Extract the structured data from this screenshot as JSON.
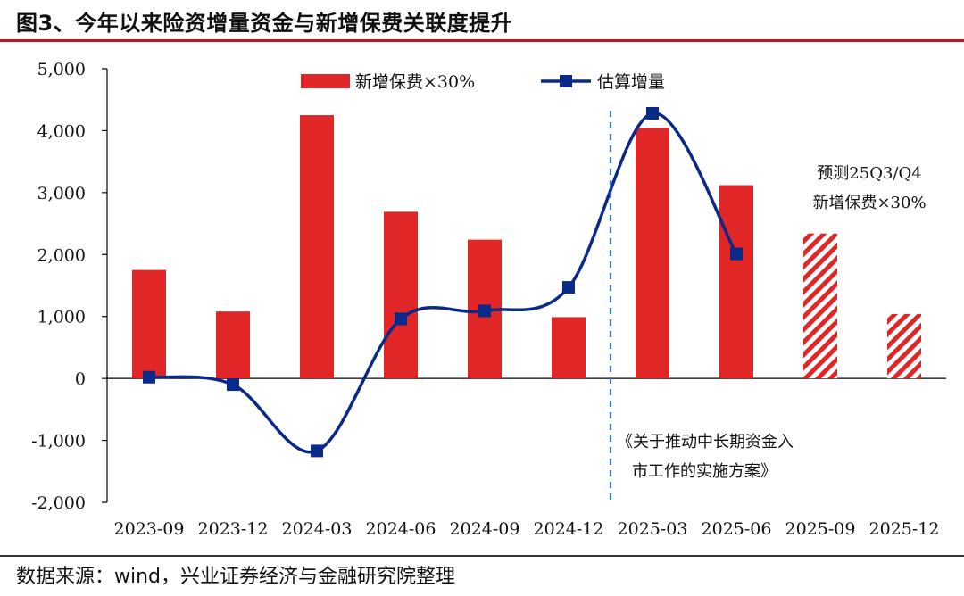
{
  "header": {
    "title": "图3、今年以来险资增量资金与新增保费关联度提升"
  },
  "footer": {
    "source": "数据来源：wind，兴业证券经济与金融研究院整理"
  },
  "colors": {
    "bar": "#e02626",
    "line": "#0a2a8a",
    "title_rule": "#b31b20",
    "divider": "#3a78c9"
  },
  "chart_data": {
    "type": "bar",
    "categories": [
      "2023-09",
      "2023-12",
      "2024-03",
      "2024-06",
      "2024-09",
      "2024-12",
      "2025-03",
      "2025-06",
      "2025-09",
      "2025-12"
    ],
    "ylim": [
      -2000,
      5000
    ],
    "yticks": [
      -2000,
      -1000,
      0,
      1000,
      2000,
      3000,
      4000,
      5000
    ],
    "ytick_labels": [
      "-2,000",
      "-1,000",
      "0",
      "1,000",
      "2,000",
      "3,000",
      "4,000",
      "5,000"
    ],
    "grid": false,
    "legend_position": "top",
    "series": [
      {
        "name": "新增保费×30%",
        "kind": "bar",
        "values": [
          1750,
          1080,
          4250,
          2690,
          2240,
          990,
          4040,
          3120,
          2340,
          1040
        ],
        "forecast": [
          false,
          false,
          false,
          false,
          false,
          false,
          false,
          false,
          true,
          true
        ]
      },
      {
        "name": "估算增量",
        "kind": "line",
        "values": [
          20,
          -100,
          -1170,
          960,
          1090,
          1470,
          4280,
          2010,
          null,
          null
        ]
      }
    ],
    "annotations": {
      "forecast_label": [
        "预测25Q3/Q4",
        "新增保费×30%"
      ],
      "policy_label": [
        "《关于推动中长期资金入",
        "市工作的实施方案》"
      ],
      "policy_divider_after": "2024-12"
    }
  }
}
